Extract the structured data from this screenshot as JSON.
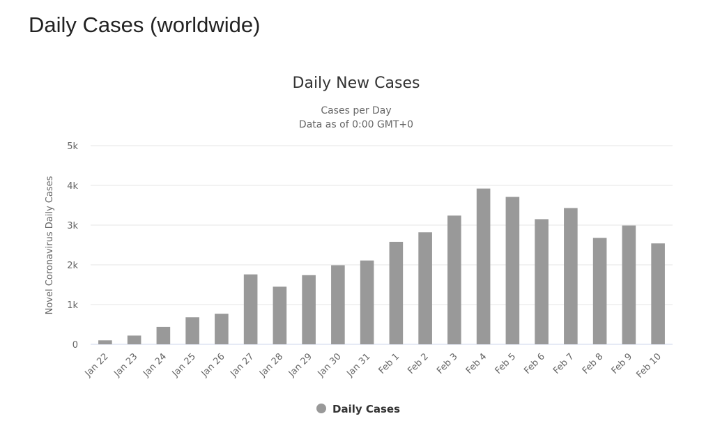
{
  "page": {
    "heading": "Daily Cases (worldwide)"
  },
  "chart_data": {
    "type": "bar",
    "title": "Daily New Cases",
    "subtitle_lines": [
      "Cases per Day",
      "Data as of 0:00 GMT+0"
    ],
    "xlabel": "",
    "ylabel": "Novel Coronavirus Daily Cases",
    "ylim": [
      0,
      5000
    ],
    "yticks": [
      0,
      1000,
      2000,
      3000,
      4000,
      5000
    ],
    "ytick_labels": [
      "0",
      "1k",
      "2k",
      "3k",
      "4k",
      "5k"
    ],
    "grid": true,
    "legend_position": "bottom-center",
    "categories": [
      "Jan 22",
      "Jan 23",
      "Jan 24",
      "Jan 25",
      "Jan 26",
      "Jan 27",
      "Jan 28",
      "Jan 29",
      "Jan 30",
      "Jan 31",
      "Feb 1",
      "Feb 2",
      "Feb 3",
      "Feb 4",
      "Feb 5",
      "Feb 6",
      "Feb 7",
      "Feb 8",
      "Feb 9",
      "Feb 10"
    ],
    "series": [
      {
        "name": "Daily Cases",
        "color": "#999999",
        "values": [
          100,
          220,
          440,
          680,
          770,
          1760,
          1450,
          1740,
          1990,
          2110,
          2580,
          2820,
          3240,
          3920,
          3710,
          3150,
          3430,
          2680,
          2990,
          2540
        ]
      }
    ]
  },
  "colors": {
    "bar": "#999999",
    "gridline": "#e6e6e6",
    "axis_line": "#ccd6eb",
    "text_dark": "#333333",
    "text_muted": "#666666"
  }
}
